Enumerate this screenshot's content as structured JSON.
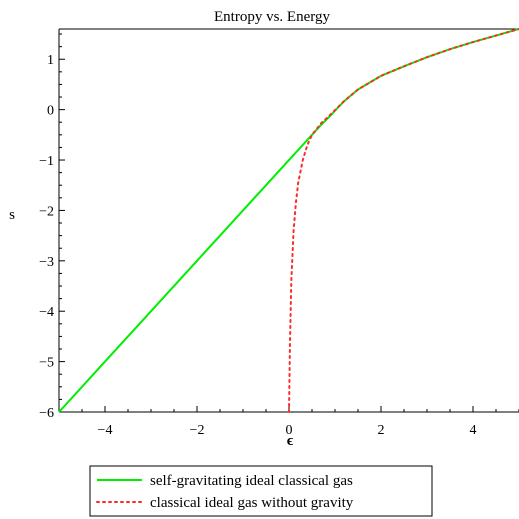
{
  "chart_data": {
    "type": "line",
    "title": "Entropy vs. Energy",
    "xlabel": "ϵ",
    "ylabel": "s",
    "xlim": [
      -5,
      5
    ],
    "ylim": [
      -6,
      1.6
    ],
    "x_ticks": [
      -4,
      -2,
      0,
      2,
      4
    ],
    "x_tick_labels": [
      "−4",
      "−2",
      "0",
      "2",
      "4"
    ],
    "y_ticks": [
      1,
      0,
      -1,
      -2,
      -3,
      -4,
      -5,
      -6
    ],
    "y_tick_labels": [
      "1",
      "0",
      "−1",
      "−2",
      "−3",
      "−4",
      "−5",
      "−6"
    ],
    "grid": false,
    "legend_position": "bottom",
    "series": [
      {
        "name": "self-gravitating ideal classical gas",
        "style": "solid",
        "color": "#00ee00",
        "points": [
          [
            -5,
            -6.0
          ],
          [
            -4,
            -5.0
          ],
          [
            -3,
            -4.0
          ],
          [
            -2,
            -3.0
          ],
          [
            -1,
            -2.0
          ],
          [
            0,
            -1.0
          ],
          [
            0.5,
            -0.5
          ],
          [
            0.7,
            -0.3
          ],
          [
            0.9,
            -0.12
          ],
          [
            1.0,
            -0.02
          ],
          [
            1.2,
            0.17
          ],
          [
            1.5,
            0.4
          ],
          [
            2.0,
            0.67
          ],
          [
            2.5,
            0.86
          ],
          [
            3.0,
            1.04
          ],
          [
            3.5,
            1.2
          ],
          [
            4.0,
            1.34
          ],
          [
            4.5,
            1.47
          ],
          [
            5.0,
            1.6
          ]
        ]
      },
      {
        "name": "classical ideal gas without gravity",
        "style": "dotted",
        "color": "#ff2a2a",
        "points": [
          [
            0.0,
            -6.0
          ],
          [
            0.02,
            -4.7
          ],
          [
            0.05,
            -3.4
          ],
          [
            0.1,
            -2.4
          ],
          [
            0.15,
            -1.85
          ],
          [
            0.2,
            -1.45
          ],
          [
            0.3,
            -1.0
          ],
          [
            0.4,
            -0.7
          ],
          [
            0.5,
            -0.5
          ],
          [
            0.7,
            -0.27
          ],
          [
            0.9,
            -0.1
          ],
          [
            1.2,
            0.17
          ],
          [
            1.5,
            0.4
          ],
          [
            2.0,
            0.67
          ],
          [
            2.5,
            0.86
          ],
          [
            3.0,
            1.04
          ],
          [
            3.5,
            1.2
          ],
          [
            4.0,
            1.34
          ],
          [
            4.5,
            1.47
          ],
          [
            5.0,
            1.6
          ]
        ]
      }
    ]
  }
}
